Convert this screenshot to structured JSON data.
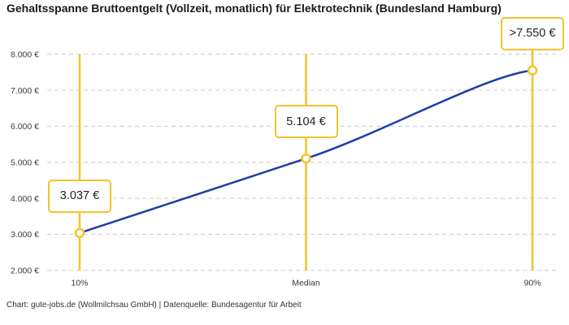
{
  "title": "Gehaltsspanne Bruttoentgelt (Vollzeit, monatlich) für Elektrotechnik (Bundesland Hamburg)",
  "footer": "Chart: gute-jobs.de (Wollmilchsau GmbH) | Datenquelle: Bundesagentur für Arbeit",
  "chart_data": {
    "type": "line",
    "title": "Gehaltsspanne Bruttoentgelt (Vollzeit, monatlich) für Elektrotechnik (Bundesland Hamburg)",
    "categories": [
      "10%",
      "Median",
      "90%"
    ],
    "values": [
      3037,
      5104,
      7550
    ],
    "point_labels": [
      "3.037 €",
      "5.104 €",
      ">7.550 €"
    ],
    "y_ticks": [
      2000,
      3000,
      4000,
      5000,
      6000,
      7000,
      8000
    ],
    "y_tick_labels": [
      "2.000 €",
      "3.000 €",
      "4.000 €",
      "5.000 €",
      "6.000 €",
      "7.000 €",
      "8.000 €"
    ],
    "ylim": [
      2000,
      8000
    ],
    "grid": "horizontal-dashed",
    "legend": "none",
    "xlabel": "",
    "ylabel": "",
    "attribution": "Chart: gute-jobs.de (Wollmilchsau GmbH) | Datenquelle: Bundesagentur für Arbeit",
    "colors": {
      "line": "#1e3ea6",
      "accent": "#f4c32b",
      "grid": "#cccccc",
      "tick_text": "#3b3b3b",
      "title_text": "#1a1a1a",
      "marker_fill": "#ffffff"
    }
  }
}
